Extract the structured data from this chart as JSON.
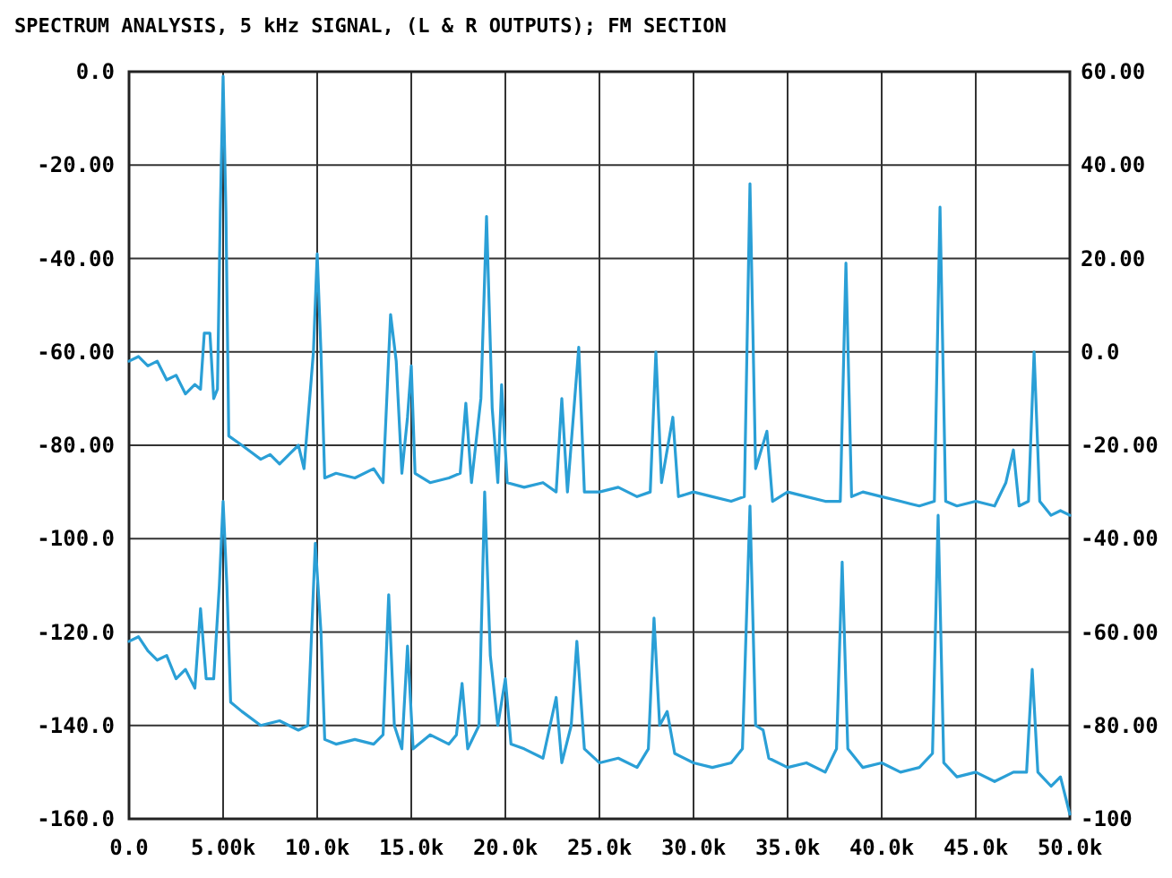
{
  "chart_data": {
    "type": "line",
    "title": "SPECTRUM ANALYSIS, 5 kHz SIGNAL, (L & R OUTPUTS); FM SECTION",
    "xlim": [
      0,
      50000
    ],
    "xticks": [
      {
        "value": 0,
        "label": "0.0"
      },
      {
        "value": 5000,
        "label": "5.00k"
      },
      {
        "value": 10000,
        "label": "10.0k"
      },
      {
        "value": 15000,
        "label": "15.0k"
      },
      {
        "value": 20000,
        "label": "20.0k"
      },
      {
        "value": 25000,
        "label": "25.0k"
      },
      {
        "value": 30000,
        "label": "30.0k"
      },
      {
        "value": 35000,
        "label": "35.0k"
      },
      {
        "value": 40000,
        "label": "40.0k"
      },
      {
        "value": 45000,
        "label": "45.0k"
      },
      {
        "value": 50000,
        "label": "50.0k"
      }
    ],
    "ylim": [
      -160,
      0
    ],
    "yticks": [
      {
        "value": 0,
        "label": "0.0"
      },
      {
        "value": -20,
        "label": "-20.00"
      },
      {
        "value": -40,
        "label": "-40.00"
      },
      {
        "value": -60,
        "label": "-60.00"
      },
      {
        "value": -80,
        "label": "-80.00"
      },
      {
        "value": -100,
        "label": "-100.0"
      },
      {
        "value": -120,
        "label": "-120.0"
      },
      {
        "value": -140,
        "label": "-140.0"
      },
      {
        "value": -160,
        "label": "-160.0"
      }
    ],
    "y2lim": [
      -100,
      60
    ],
    "y2ticks": [
      {
        "value": 60,
        "label": "60.00"
      },
      {
        "value": 40,
        "label": "40.00"
      },
      {
        "value": 20,
        "label": "20.00"
      },
      {
        "value": 0,
        "label": "0.0"
      },
      {
        "value": -20,
        "label": "-20.00"
      },
      {
        "value": -40,
        "label": "-40.00"
      },
      {
        "value": -60,
        "label": "-60.00"
      },
      {
        "value": -80,
        "label": "-80.00"
      },
      -100
    ],
    "grid": true,
    "series": [
      {
        "color": "#2a9fd6",
        "x": [
          0,
          500,
          1000,
          1500,
          2000,
          2500,
          3000,
          3500,
          3800,
          4000,
          4300,
          4500,
          4700,
          4850,
          5000,
          5150,
          5300,
          6000,
          7000,
          7500,
          8000,
          8500,
          9000,
          9300,
          9800,
          10000,
          10200,
          10400,
          11000,
          12000,
          13000,
          13500,
          13900,
          14200,
          14500,
          14800,
          15000,
          15200,
          16000,
          17000,
          17600,
          17900,
          18200,
          18700,
          19000,
          19300,
          19600,
          19800,
          20100,
          21000,
          22000,
          22700,
          23000,
          23300,
          23900,
          24200,
          25000,
          26000,
          27000,
          27700,
          28000,
          28300,
          28900,
          29200,
          30000,
          31000,
          32000,
          32700,
          33000,
          33300,
          33900,
          34200,
          35000,
          36000,
          37000,
          37800,
          38100,
          38400,
          39000,
          40000,
          41000,
          42000,
          42800,
          43100,
          43400,
          44000,
          45000,
          46000,
          46600,
          47000,
          47300,
          47800,
          48100,
          48400,
          49000,
          49500,
          50000
        ],
        "values": [
          -62,
          -61,
          -63,
          -62,
          -66,
          -65,
          -69,
          -67,
          -68,
          -56,
          -56,
          -70,
          -68,
          -30,
          -1,
          -30,
          -78,
          -80,
          -83,
          -82,
          -84,
          -82,
          -80,
          -85,
          -60,
          -39,
          -60,
          -87,
          -86,
          -87,
          -85,
          -88,
          -52,
          -62,
          -86,
          -74,
          -63,
          -86,
          -88,
          -87,
          -86,
          -71,
          -88,
          -70,
          -31,
          -72,
          -88,
          -67,
          -88,
          -89,
          -88,
          -90,
          -70,
          -90,
          -59,
          -90,
          -90,
          -89,
          -91,
          -90,
          -60,
          -88,
          -74,
          -91,
          -90,
          -91,
          -92,
          -91,
          -24,
          -85,
          -77,
          -92,
          -90,
          -91,
          -92,
          -92,
          -41,
          -91,
          -90,
          -91,
          -92,
          -93,
          -92,
          -29,
          -92,
          -93,
          -92,
          -93,
          -88,
          -81,
          -93,
          -92,
          -60,
          -92,
          -95,
          -94,
          -95
        ]
      },
      {
        "color": "#2a9fd6",
        "axis": "y2",
        "x": [
          0,
          500,
          1000,
          1500,
          2000,
          2500,
          3000,
          3500,
          3800,
          4100,
          4500,
          4800,
          5000,
          5200,
          5400,
          6000,
          7000,
          8000,
          9000,
          9500,
          9900,
          10200,
          10400,
          11000,
          12000,
          13000,
          13500,
          13800,
          14100,
          14500,
          14800,
          15100,
          16000,
          17000,
          17400,
          17700,
          18000,
          18600,
          18900,
          19200,
          19600,
          20000,
          20300,
          21000,
          22000,
          22700,
          23000,
          23500,
          23800,
          24200,
          25000,
          26000,
          27000,
          27600,
          27900,
          28200,
          28600,
          29000,
          30000,
          31000,
          32000,
          32600,
          33000,
          33300,
          33700,
          34000,
          35000,
          36000,
          37000,
          37600,
          37900,
          38200,
          39000,
          40000,
          41000,
          42000,
          42700,
          43000,
          43300,
          44000,
          45000,
          46000,
          47000,
          47700,
          48000,
          48300,
          49000,
          49500,
          50000
        ],
        "values": [
          -62,
          -61,
          -64,
          -66,
          -65,
          -70,
          -68,
          -72,
          -55,
          -70,
          -70,
          -50,
          -32,
          -50,
          -75,
          -77,
          -80,
          -79,
          -81,
          -80,
          -41,
          -60,
          -83,
          -84,
          -83,
          -84,
          -82,
          -52,
          -80,
          -85,
          -63,
          -85,
          -82,
          -84,
          -82,
          -71,
          -85,
          -80,
          -30,
          -65,
          -80,
          -70,
          -84,
          -85,
          -87,
          -74,
          -88,
          -80,
          -62,
          -85,
          -88,
          -87,
          -89,
          -85,
          -57,
          -80,
          -77,
          -86,
          -88,
          -89,
          -88,
          -85,
          -33,
          -80,
          -81,
          -87,
          -89,
          -88,
          -90,
          -85,
          -45,
          -85,
          -89,
          -88,
          -90,
          -89,
          -86,
          -35,
          -88,
          -91,
          -90,
          -92,
          -90,
          -90,
          -68,
          -90,
          -93,
          -91,
          -99
        ]
      }
    ]
  }
}
